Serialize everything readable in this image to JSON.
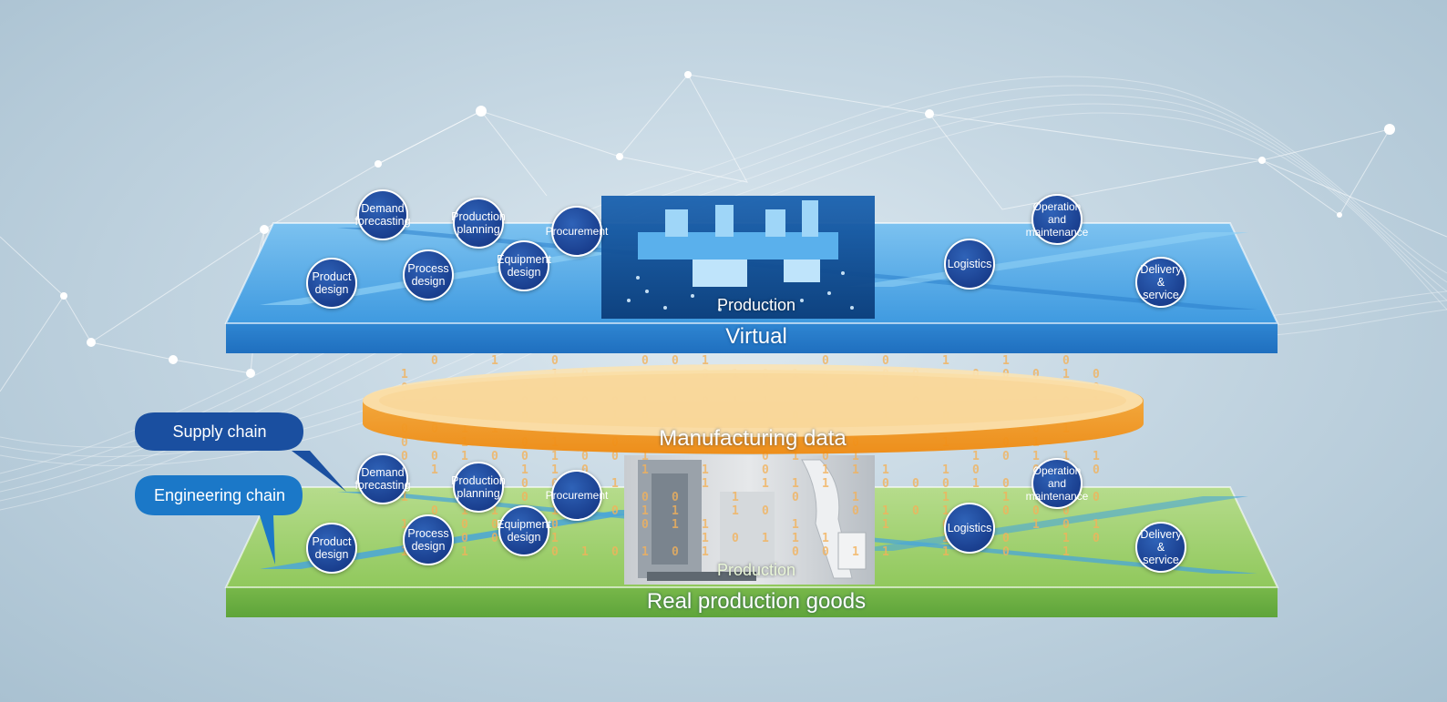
{
  "layers": {
    "virtual": {
      "label": "Virtual",
      "production_label": "Production"
    },
    "data_ring": {
      "label": "Manufacturing data"
    },
    "real": {
      "label": "Real production goods",
      "production_label": "Production"
    }
  },
  "chains": {
    "supply": "Supply chain",
    "engineering": "Engineering chain"
  },
  "nodes": {
    "demand_forecasting": "Demand forecasting",
    "production_planning": "Production planning",
    "procurement": "Procurement",
    "equipment_design": "Equipment design",
    "product_design": "Product design",
    "process_design": "Process design",
    "logistics": "Logistics",
    "operation_maintenance": "Operation and maintenance",
    "delivery_service": "Delivery & service"
  },
  "colors": {
    "virtual_plane": "#3d9be0",
    "real_plane": "#8cc85a",
    "data_ring": "#f39a1e",
    "node": "#1d4596",
    "callout": "#1a56a8"
  }
}
